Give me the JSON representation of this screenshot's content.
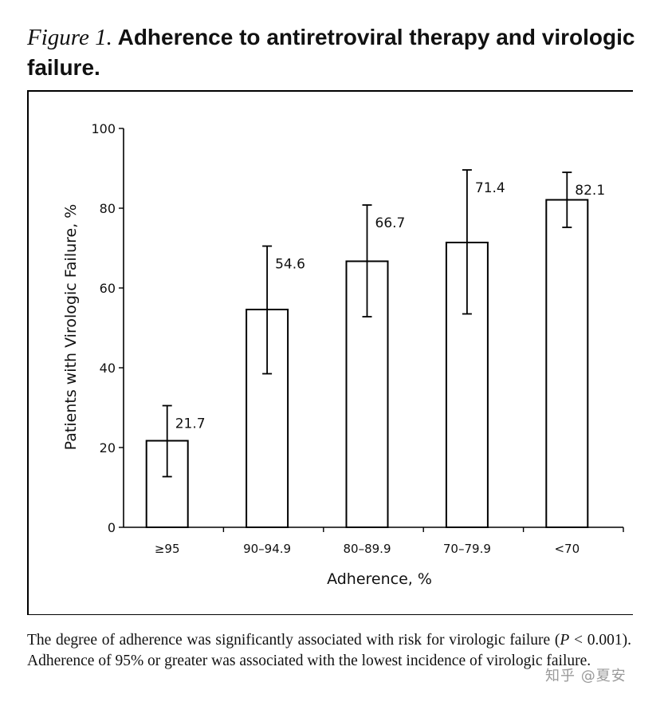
{
  "figure": {
    "label": "Figure 1.",
    "title": "Adherence to antiretroviral therapy and virologic failure."
  },
  "caption": {
    "part1": "The degree of adherence was significantly associated with risk for virologic failure (",
    "p_symbol": "P",
    "part2": " < 0.001). Adherence of 95% or greater was associated with the lowest incidence of virologic failure."
  },
  "watermark": "知乎 @夏安",
  "chart_data": {
    "type": "bar",
    "xlabel": "Adherence, %",
    "ylabel": "Patients with Virologic Failure, %",
    "categories": [
      "≥95",
      "90–94.9",
      "80–89.9",
      "70–79.9",
      "<70"
    ],
    "values": [
      21.7,
      54.6,
      66.7,
      71.4,
      82.1
    ],
    "value_labels": [
      "21.7",
      "54.6",
      "66.7",
      "71.4",
      "82.1"
    ],
    "error_bars": [
      {
        "low": 12.7,
        "high": 30.5
      },
      {
        "low": 38.5,
        "high": 70.5
      },
      {
        "low": 52.8,
        "high": 80.8
      },
      {
        "low": 53.5,
        "high": 89.6
      },
      {
        "low": 75.2,
        "high": 89.0
      }
    ],
    "ylim": [
      0,
      100
    ],
    "yticks": [
      "0",
      "20",
      "40",
      "60",
      "80",
      "100"
    ],
    "grid": false,
    "legend": "none",
    "bar_fill": "#ffffff",
    "bar_stroke": "#000000"
  }
}
